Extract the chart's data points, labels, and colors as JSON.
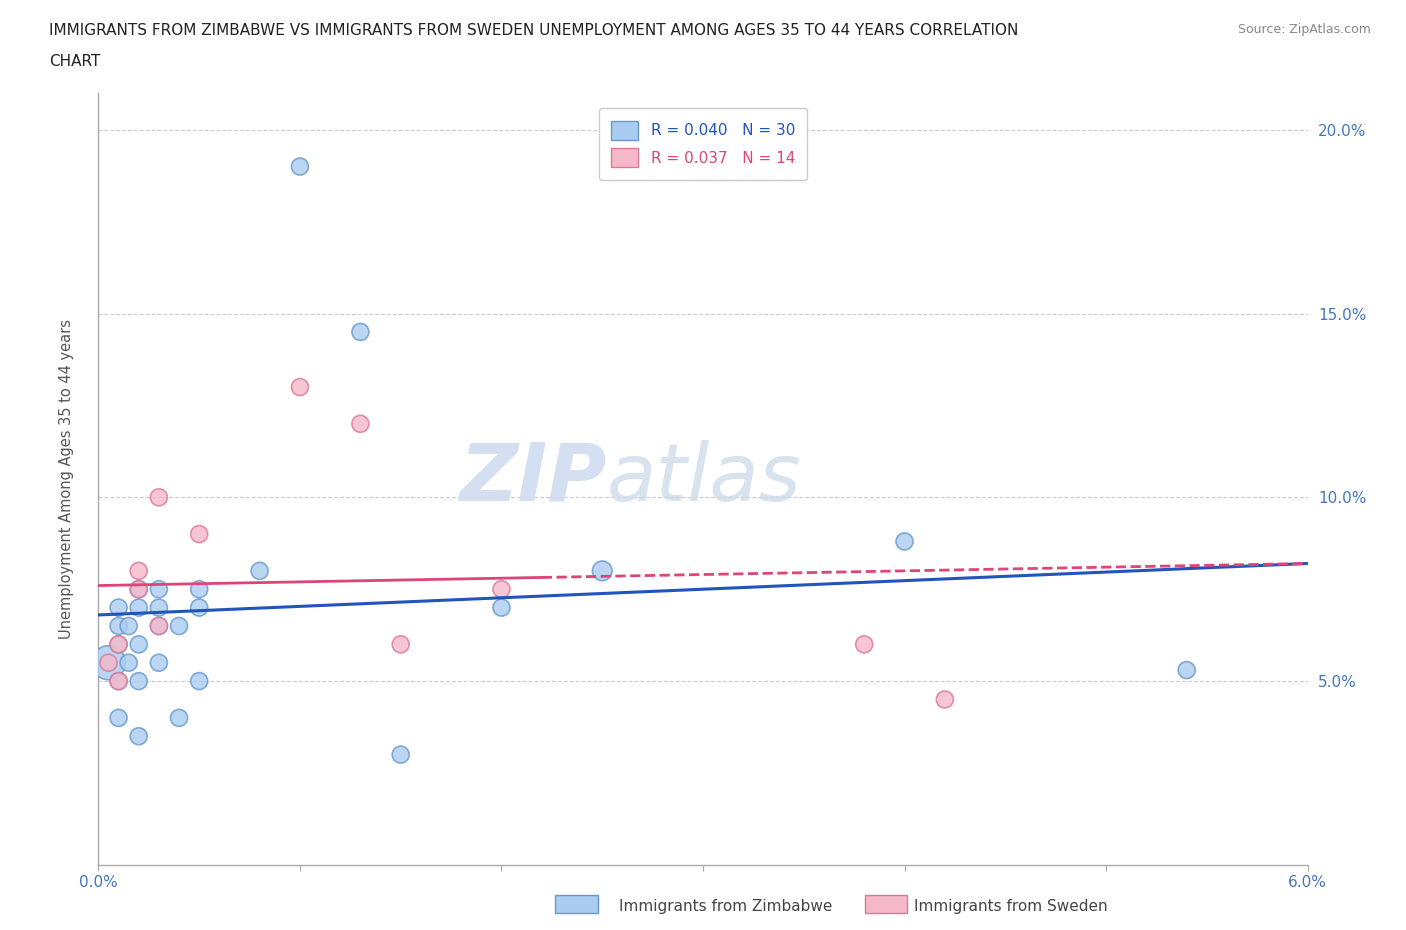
{
  "title": "IMMIGRANTS FROM ZIMBABWE VS IMMIGRANTS FROM SWEDEN UNEMPLOYMENT AMONG AGES 35 TO 44 YEARS CORRELATION\nCHART",
  "source": "Source: ZipAtlas.com",
  "ylabel": "Unemployment Among Ages 35 to 44 years",
  "xlim": [
    0.0,
    0.06
  ],
  "ylim": [
    0.0,
    0.21
  ],
  "xticks": [
    0.0,
    0.01,
    0.02,
    0.03,
    0.04,
    0.05,
    0.06
  ],
  "xticklabels": [
    "0.0%",
    "",
    "",
    "",
    "",
    "",
    "6.0%"
  ],
  "yticks": [
    0.0,
    0.05,
    0.1,
    0.15,
    0.2
  ],
  "yticklabels": [
    "",
    "5.0%",
    "10.0%",
    "15.0%",
    "20.0%"
  ],
  "zimbabwe_color": "#aaccf0",
  "zimbabwe_edge": "#6699cc",
  "sweden_color": "#f5b8c8",
  "sweden_edge": "#dd7799",
  "legend_r_zimbabwe": "R = 0.040   N = 30",
  "legend_r_sweden": "R = 0.037   N = 14",
  "trend_zimbabwe_color": "#2255bb",
  "trend_sweden_color": "#dd4477",
  "watermark_zip": "ZIP",
  "watermark_atlas": "atlas",
  "zimbabwe_x": [
    0.0005,
    0.001,
    0.001,
    0.001,
    0.001,
    0.001,
    0.0015,
    0.0015,
    0.002,
    0.002,
    0.002,
    0.002,
    0.002,
    0.003,
    0.003,
    0.003,
    0.003,
    0.004,
    0.004,
    0.005,
    0.005,
    0.005,
    0.008,
    0.01,
    0.013,
    0.015,
    0.02,
    0.025,
    0.04,
    0.054
  ],
  "zimbabwe_y": [
    0.055,
    0.04,
    0.05,
    0.06,
    0.065,
    0.07,
    0.055,
    0.065,
    0.035,
    0.05,
    0.06,
    0.07,
    0.075,
    0.055,
    0.065,
    0.07,
    0.075,
    0.04,
    0.065,
    0.05,
    0.07,
    0.075,
    0.08,
    0.19,
    0.145,
    0.03,
    0.07,
    0.08,
    0.088,
    0.053
  ],
  "zimbabwe_sizes": [
    600,
    150,
    150,
    150,
    150,
    150,
    150,
    150,
    150,
    150,
    150,
    150,
    150,
    150,
    150,
    150,
    150,
    150,
    150,
    150,
    150,
    150,
    150,
    150,
    150,
    150,
    150,
    200,
    150,
    150
  ],
  "sweden_x": [
    0.0005,
    0.001,
    0.001,
    0.002,
    0.002,
    0.003,
    0.003,
    0.005,
    0.01,
    0.013,
    0.015,
    0.02,
    0.038,
    0.042
  ],
  "sweden_y": [
    0.055,
    0.05,
    0.06,
    0.075,
    0.08,
    0.065,
    0.1,
    0.09,
    0.13,
    0.12,
    0.06,
    0.075,
    0.06,
    0.045
  ],
  "sweden_sizes": [
    150,
    150,
    150,
    150,
    150,
    150,
    150,
    150,
    150,
    150,
    150,
    150,
    150,
    150
  ],
  "trend_zim_y0": 0.068,
  "trend_zim_y1": 0.082,
  "trend_swe_y0": 0.076,
  "trend_swe_y1": 0.082
}
